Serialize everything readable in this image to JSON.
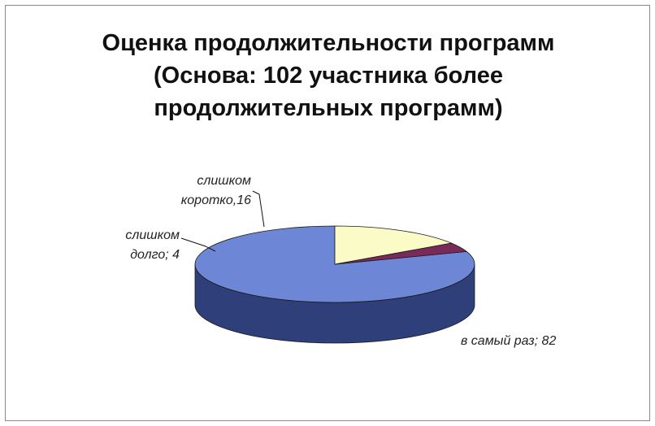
{
  "chart_data": {
    "type": "pie",
    "title_lines": [
      "Оценка продолжительности программ",
      "(Основа: 102 участника более",
      "продолжительных программ)"
    ],
    "slices": [
      {
        "label_lines": [
          "в самый раз; 82"
        ],
        "value": 82,
        "color": "#6d87d6",
        "side_color": "#2f3f7a"
      },
      {
        "label_lines": [
          "слишком",
          "долго; 4"
        ],
        "value": 4,
        "color": "#7a2a5a",
        "side_color": "#4a1636"
      },
      {
        "label_lines": [
          "слишком",
          "коротко,16"
        ],
        "value": 16,
        "color": "#fbfbc7",
        "side_color": "#b8b88a"
      }
    ],
    "total": 102
  }
}
